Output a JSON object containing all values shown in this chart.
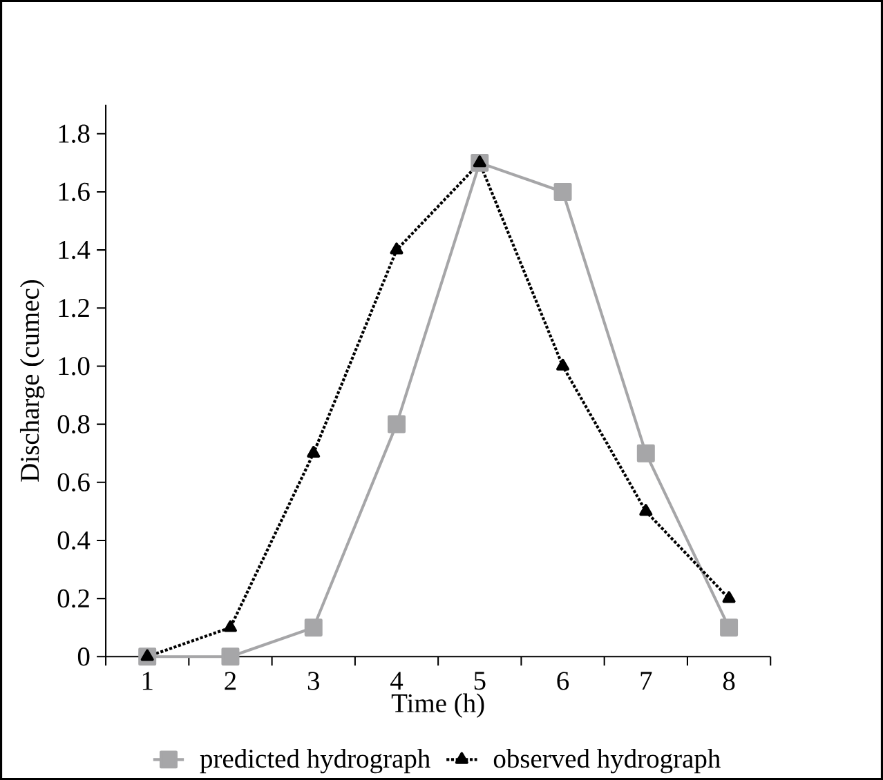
{
  "chart_data": {
    "type": "line",
    "xlabel": "Time (h)",
    "ylabel": "Discharge  (cumec)",
    "categories": [
      "1",
      "2",
      "3",
      "4",
      "5",
      "6",
      "7",
      "8"
    ],
    "series": [
      {
        "name": "predicted hydrograph",
        "color": "#a6a6a8",
        "marker": "square",
        "line_style": "solid",
        "values": [
          0,
          0,
          0.1,
          0.8,
          1.7,
          1.6,
          0.7,
          0.1
        ]
      },
      {
        "name": "observed hydrograph",
        "color": "#000000",
        "marker": "triangle",
        "line_style": "dotted",
        "values": [
          0,
          0.1,
          0.7,
          1.4,
          1.7,
          1.0,
          0.5,
          0.2
        ]
      }
    ],
    "ylim": [
      0,
      1.9
    ],
    "yticks": [
      0,
      0.2,
      0.4,
      0.6,
      0.8,
      {
        "value": 1,
        "label": "1.0"
      },
      1.2,
      1.4,
      1.6,
      1.8
    ],
    "legend": "bottom",
    "grid": false
  }
}
